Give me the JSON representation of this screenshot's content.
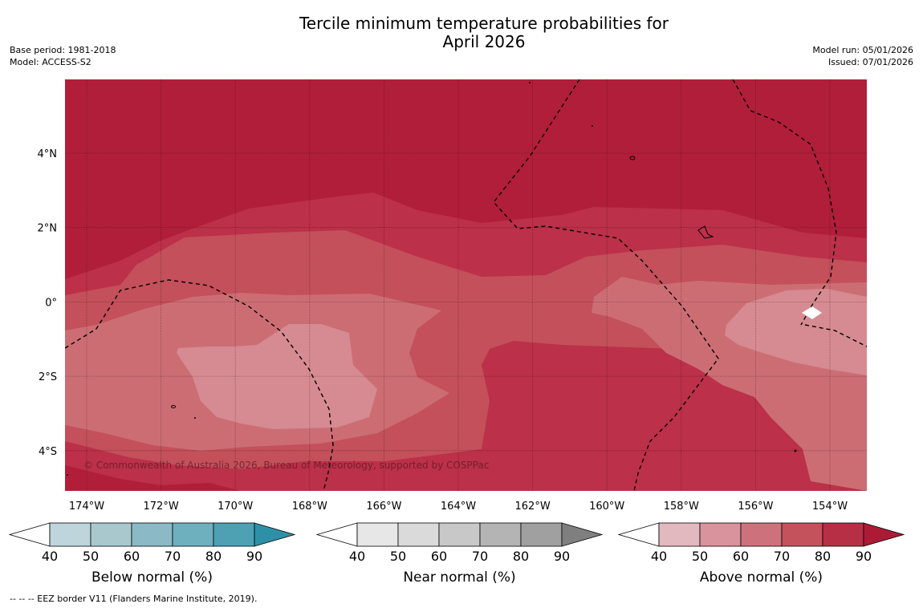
{
  "title": "Tercile minimum temperature probabilities for\nApril 2026",
  "base_period": "Base period: 1981-2018",
  "model": "Model: ACCESS-S2",
  "model_run": "Model run: 05/01/2026",
  "issued": "Issued: 07/01/2026",
  "copyright": "© Commonwealth of Australia 2026, Bureau of Meteorology, supported by COSPPac",
  "eez_credit": "--  --  -- EEZ border V11 (Flanders Marine Institute, 2019).",
  "lon_ticks": [
    "174°W",
    "172°W",
    "170°W",
    "168°W",
    "166°W",
    "164°W",
    "162°W",
    "160°W",
    "158°W",
    "156°W",
    "154°W"
  ],
  "lat_ticks": [
    "4°N",
    "2°N",
    "0°",
    "2°S",
    "4°S"
  ],
  "colorbars": [
    {
      "label": "Below normal (%)",
      "ticks": [
        "40",
        "50",
        "60",
        "70",
        "80",
        "90"
      ],
      "colors": [
        "#ffffff",
        "#bfd5dc",
        "#a8c8ce",
        "#8cb9c6",
        "#6fb0bf",
        "#4da1b3",
        "#2e90a6"
      ]
    },
    {
      "label": "Near normal (%)",
      "ticks": [
        "40",
        "50",
        "60",
        "70",
        "80",
        "90"
      ],
      "colors": [
        "#ffffff",
        "#e7e7e7",
        "#dadada",
        "#c8c8c8",
        "#b4b4b4",
        "#a0a0a0",
        "#7f7f7f"
      ]
    },
    {
      "label": "Above normal (%)",
      "ticks": [
        "40",
        "50",
        "60",
        "70",
        "80",
        "90"
      ],
      "colors": [
        "#ffffff",
        "#e2b9be",
        "#d8939c",
        "#cd727c",
        "#c3525c",
        "#b72f45",
        "#ad1a36"
      ]
    }
  ],
  "colors": {
    "p90": "#b11e3a",
    "p80": "#bc3049",
    "p70": "#c3505b",
    "p60": "#cc6d74",
    "p50": "#d68a91"
  }
}
